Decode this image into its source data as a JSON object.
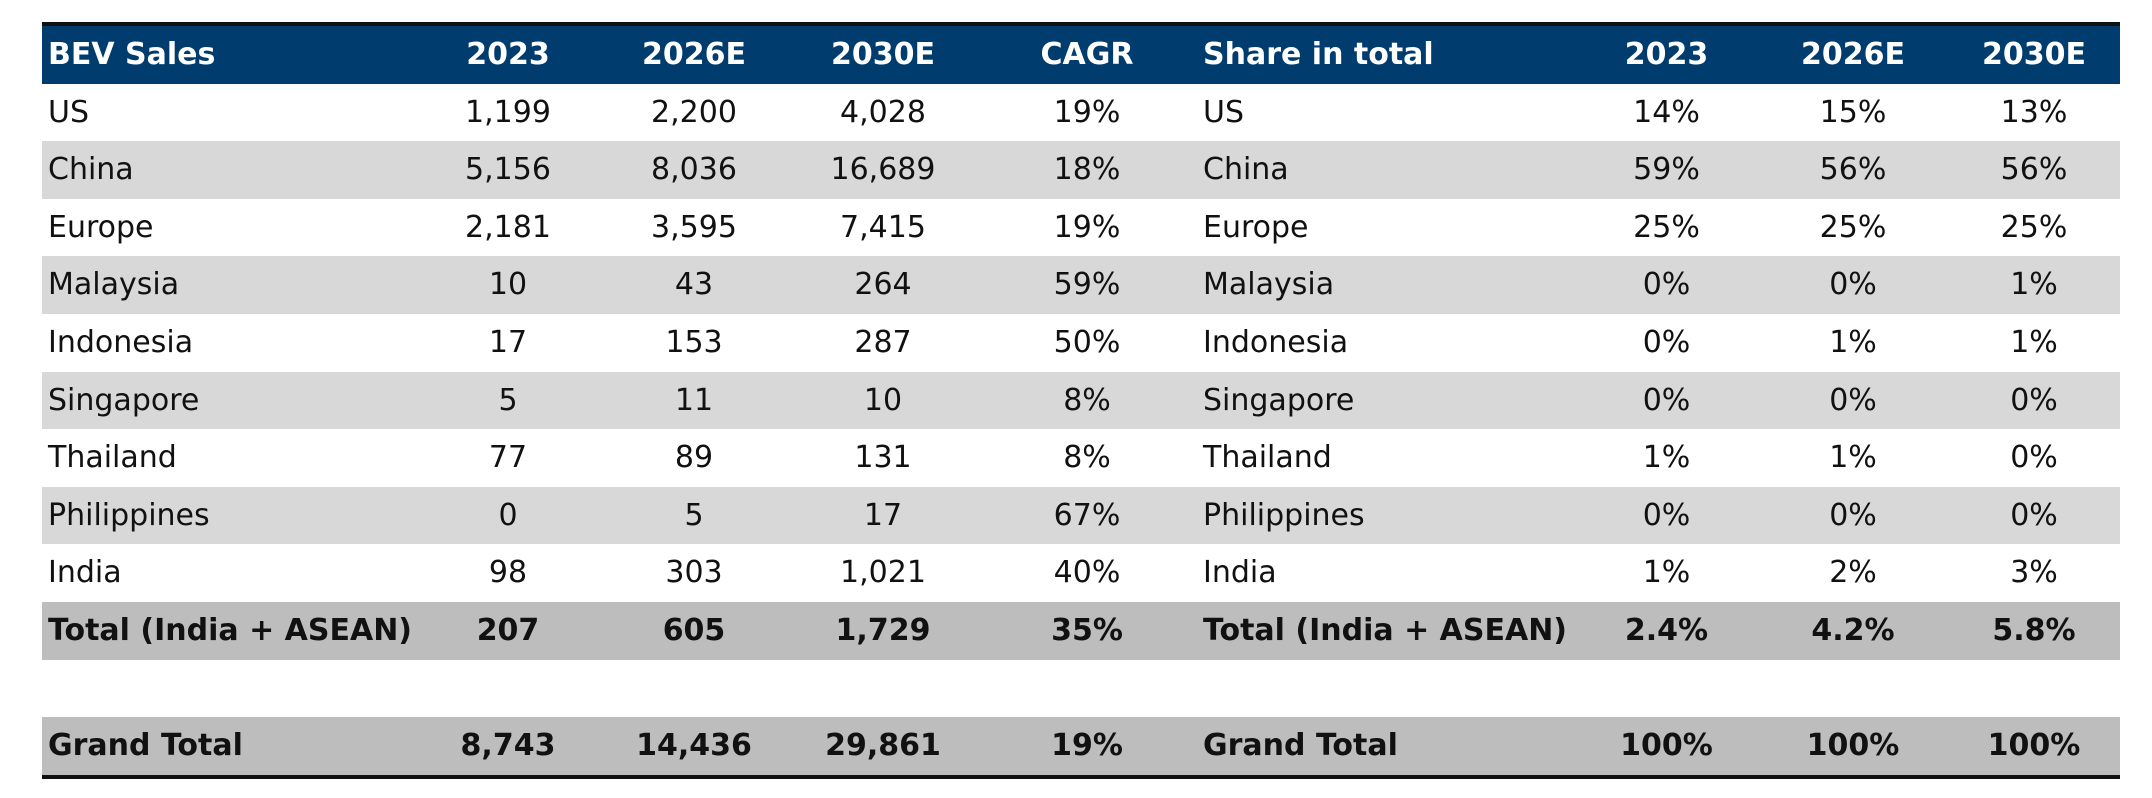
{
  "columns": [
    "BEV Sales",
    "2023",
    "2026E",
    "2030E",
    "CAGR",
    "Share in total",
    "2023",
    "2026E",
    "2030E"
  ],
  "rows": [
    {
      "sales_label": "US",
      "v2023": "1,199",
      "v2026": "2,200",
      "v2030": "4,028",
      "cagr": "19%",
      "share_label": "US",
      "s2023": "14%",
      "s2026": "15%",
      "s2030": "13%"
    },
    {
      "sales_label": "China",
      "v2023": "5,156",
      "v2026": "8,036",
      "v2030": "16,689",
      "cagr": "18%",
      "share_label": "China",
      "s2023": "59%",
      "s2026": "56%",
      "s2030": "56%"
    },
    {
      "sales_label": "Europe",
      "v2023": "2,181",
      "v2026": "3,595",
      "v2030": "7,415",
      "cagr": "19%",
      "share_label": "Europe",
      "s2023": "25%",
      "s2026": "25%",
      "s2030": "25%"
    },
    {
      "sales_label": "Malaysia",
      "v2023": "10",
      "v2026": "43",
      "v2030": "264",
      "cagr": "59%",
      "share_label": "Malaysia",
      "s2023": "0%",
      "s2026": "0%",
      "s2030": "1%"
    },
    {
      "sales_label": "Indonesia",
      "v2023": "17",
      "v2026": "153",
      "v2030": "287",
      "cagr": "50%",
      "share_label": "Indonesia",
      "s2023": "0%",
      "s2026": "1%",
      "s2030": "1%"
    },
    {
      "sales_label": "Singapore",
      "v2023": "5",
      "v2026": "11",
      "v2030": "10",
      "cagr": "8%",
      "share_label": "Singapore",
      "s2023": "0%",
      "s2026": "0%",
      "s2030": "0%"
    },
    {
      "sales_label": "Thailand",
      "v2023": "77",
      "v2026": "89",
      "v2030": "131",
      "cagr": "8%",
      "share_label": "Thailand",
      "s2023": "1%",
      "s2026": "1%",
      "s2030": "0%"
    },
    {
      "sales_label": "Philippines",
      "v2023": "0",
      "v2026": "5",
      "v2030": "17",
      "cagr": "67%",
      "share_label": "Philippines",
      "s2023": "0%",
      "s2026": "0%",
      "s2030": "0%"
    },
    {
      "sales_label": "India",
      "v2023": "98",
      "v2026": "303",
      "v2030": "1,021",
      "cagr": "40%",
      "share_label": "India",
      "s2023": "1%",
      "s2026": "2%",
      "s2030": "3%"
    }
  ],
  "total": {
    "sales_label": "Total (India + ASEAN)",
    "v2023": "207",
    "v2026": "605",
    "v2030": "1,729",
    "cagr": "35%",
    "share_label": "Total (India + ASEAN)",
    "s2023": "2.4%",
    "s2026": "4.2%",
    "s2030": "5.8%"
  },
  "grand_total": {
    "sales_label": "Grand Total",
    "v2023": "8,743",
    "v2026": "14,436",
    "v2030": "29,861",
    "cagr": "19%",
    "share_label": "Grand Total",
    "s2023": "100%",
    "s2026": "100%",
    "s2030": "100%"
  },
  "colors": {
    "header_bg": "#003d6e",
    "stripe": "#d8d8d8",
    "total_bg": "#bdbdbd"
  }
}
